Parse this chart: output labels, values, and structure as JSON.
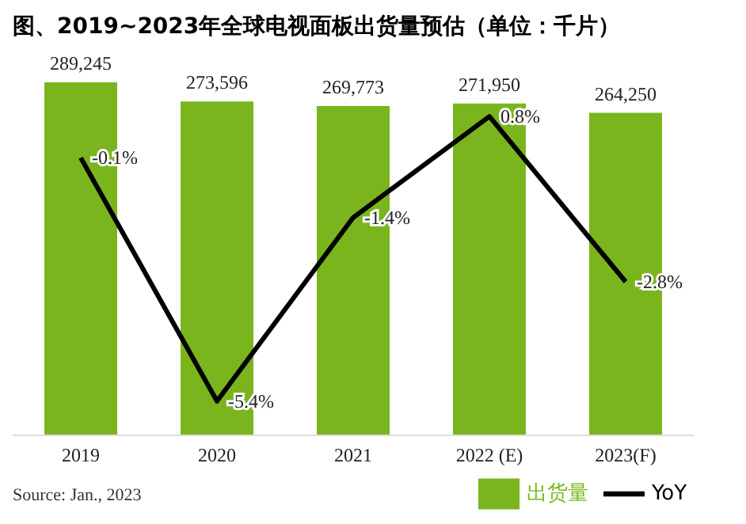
{
  "chart_data": {
    "type": "bar",
    "title": "图、2019~2023年全球电视面板出货量预估（单位：千片）",
    "categories": [
      "2019",
      "2020",
      "2021",
      "2022 (E)",
      "2023(F)"
    ],
    "series": [
      {
        "name": "出货量",
        "color": "#7ab51d",
        "values": [
          289245,
          273596,
          269773,
          271950,
          264250
        ],
        "value_labels": [
          "289,245",
          "273,596",
          "269,773",
          "271,950",
          "264,250"
        ]
      },
      {
        "name": "YoY",
        "type": "line",
        "axis": "y2",
        "color": "#000000",
        "values": [
          -0.1,
          -5.4,
          -1.4,
          0.8,
          -2.8
        ],
        "value_labels": [
          "-0.1%",
          "-5.4%",
          "-1.4%",
          "0.8%",
          "-2.8%"
        ]
      }
    ],
    "annotations": [
      "Source: Jan., 2023"
    ],
    "legend": "bottom",
    "marker": "none"
  }
}
